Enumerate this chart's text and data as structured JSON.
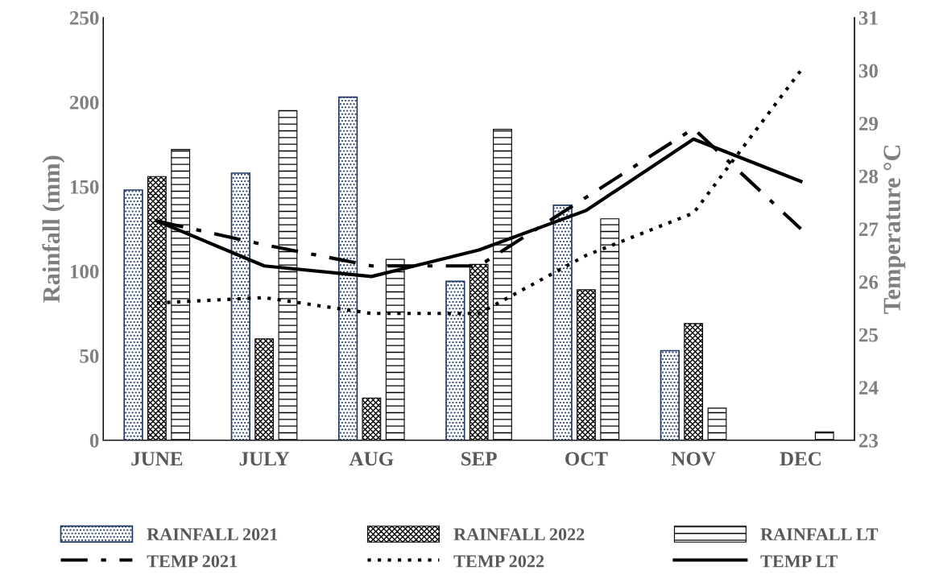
{
  "chart_data": {
    "type": "bar",
    "ylabel": "Rainfall (mm)",
    "y2label": "Temperature °C",
    "categories": [
      "JUNE",
      "JULY",
      "AUG",
      "SEP",
      "OCT",
      "NOV",
      "DEC"
    ],
    "series": [
      {
        "name": "RAINFALL 2021",
        "color": "#1f3864",
        "values": [
          148,
          158,
          203,
          94,
          139,
          53,
          null
        ]
      },
      {
        "name": "RAINFALL 2022",
        "color": "#000000",
        "values": [
          156,
          60,
          25,
          104,
          89,
          69,
          null
        ]
      },
      {
        "name": "RAINFALL LT",
        "color": "#000000",
        "values": [
          172,
          195,
          107,
          184,
          131,
          19,
          5
        ]
      },
      {
        "name": "TEMP 2021",
        "type": "line",
        "axis": "y2",
        "line_style": "dashed",
        "color": "#000000",
        "values": [
          27.15,
          26.7,
          26.3,
          26.3,
          27.6,
          28.9,
          27.0
        ]
      },
      {
        "name": "TEMP 2022",
        "type": "line",
        "axis": "y2",
        "line_style": "dotted",
        "color": "#000000",
        "values": [
          25.6,
          25.7,
          25.4,
          25.4,
          26.5,
          27.3,
          30.0
        ]
      },
      {
        "name": "TEMP LT",
        "type": "line",
        "axis": "y2",
        "line_style": "solid",
        "color": "#000000",
        "values": [
          27.15,
          26.3,
          26.1,
          26.6,
          27.35,
          28.7,
          27.9
        ]
      }
    ],
    "ylim": [
      0,
      250
    ],
    "yticks": [
      0,
      50,
      100,
      150,
      200,
      250
    ],
    "y2lim": [
      23,
      31
    ],
    "y2ticks": [
      23,
      24,
      25,
      26,
      27,
      28,
      29,
      30,
      31
    ],
    "grid": false,
    "legend": "bottom",
    "marker": "none"
  }
}
